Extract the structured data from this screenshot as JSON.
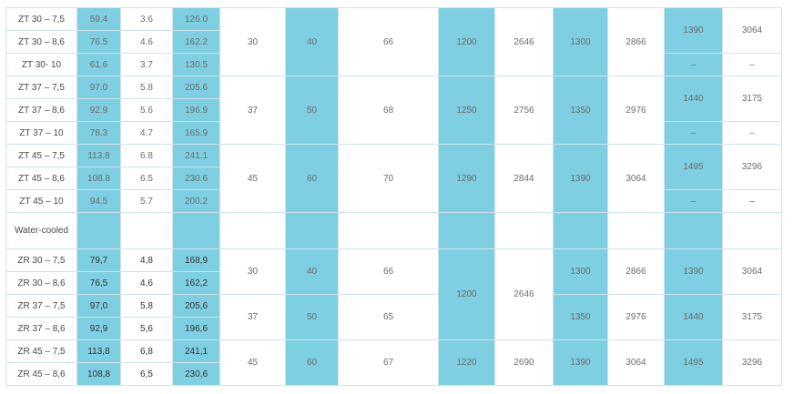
{
  "air_cooled": [
    {
      "model": "ZT 30 – 7,5",
      "c1": "59.4",
      "c2": "3.6",
      "c3": "126.0"
    },
    {
      "model": "ZT 30 – 8,6",
      "c1": "76.5",
      "c2": "4.6",
      "c3": "162.2"
    },
    {
      "model": "ZT 30- 10",
      "c1": "61.6",
      "c2": "3.7",
      "c3": "130.5"
    },
    {
      "model": "ZT 37 – 7,5",
      "c1": "97.0",
      "c2": "5.8",
      "c3": "205.6"
    },
    {
      "model": "ZT 37 – 8,6",
      "c1": "92.9",
      "c2": "5.6",
      "c3": "196.9"
    },
    {
      "model": "ZT 37 – 10",
      "c1": "78.3",
      "c2": "4.7",
      "c3": "165.9"
    },
    {
      "model": "ZT 45 – 7,5",
      "c1": "113.8",
      "c2": "6.8",
      "c3": "241.1"
    },
    {
      "model": "ZT 45 – 8,6",
      "c1": "108.8",
      "c2": "6.5",
      "c3": "230.6"
    },
    {
      "model": "ZT 45 – 10",
      "c1": "94.5",
      "c2": "5.7",
      "c3": "200.2"
    }
  ],
  "air_groups": [
    {
      "kw": "30",
      "hp": "40",
      "noise": "66",
      "w1": "1200",
      "w2": "2646",
      "w3": "1300",
      "w4": "2866",
      "w5": "1390",
      "w6": "3064",
      "w5b": "–",
      "w6b": "–"
    },
    {
      "kw": "37",
      "hp": "50",
      "noise": "68",
      "w1": "1250",
      "w2": "2756",
      "w3": "1350",
      "w4": "2976",
      "w5": "1440",
      "w6": "3175",
      "w5b": "–",
      "w6b": "–"
    },
    {
      "kw": "45",
      "hp": "60",
      "noise": "70",
      "w1": "1290",
      "w2": "2844",
      "w3": "1390",
      "w4": "3064",
      "w5": "1495",
      "w6": "3296",
      "w5b": "–",
      "w6b": "–"
    }
  ],
  "section_label": "Water-cooled",
  "water_cooled": [
    {
      "model": "ZR 30 – 7,5",
      "c1": "79,7",
      "c2": "4,8",
      "c3": "168,9"
    },
    {
      "model": "ZR 30 – 8,6",
      "c1": "76,5",
      "c2": "4,6",
      "c3": "162,2"
    },
    {
      "model": "ZR 37 – 7,5",
      "c1": "97,0",
      "c2": "5,8",
      "c3": "205,6"
    },
    {
      "model": "ZR 37 – 8,6",
      "c1": "92,9",
      "c2": "5,6",
      "c3": "196,6"
    },
    {
      "model": "ZR 45 – 7,5",
      "c1": "113,8",
      "c2": "6,8",
      "c3": "241,1"
    },
    {
      "model": "ZR 45 – 8,6",
      "c1": "108,8",
      "c2": "6,5",
      "c3": "230,6"
    }
  ],
  "water_groups": [
    {
      "kw": "30",
      "hp": "40",
      "noise": "66",
      "w3": "1300",
      "w4": "2866",
      "w5": "1390",
      "w6": "3064"
    },
    {
      "kw": "37",
      "hp": "50",
      "noise": "65",
      "w3": "1350",
      "w4": "2976",
      "w5": "1440",
      "w6": "3175"
    },
    {
      "kw": "45",
      "hp": "60",
      "noise": "67",
      "w1": "1220",
      "w2": "2690",
      "w3": "1390",
      "w4": "3064",
      "w5": "1495",
      "w6": "3296"
    }
  ],
  "water_shared": {
    "w1": "1200",
    "w2": "2646"
  }
}
